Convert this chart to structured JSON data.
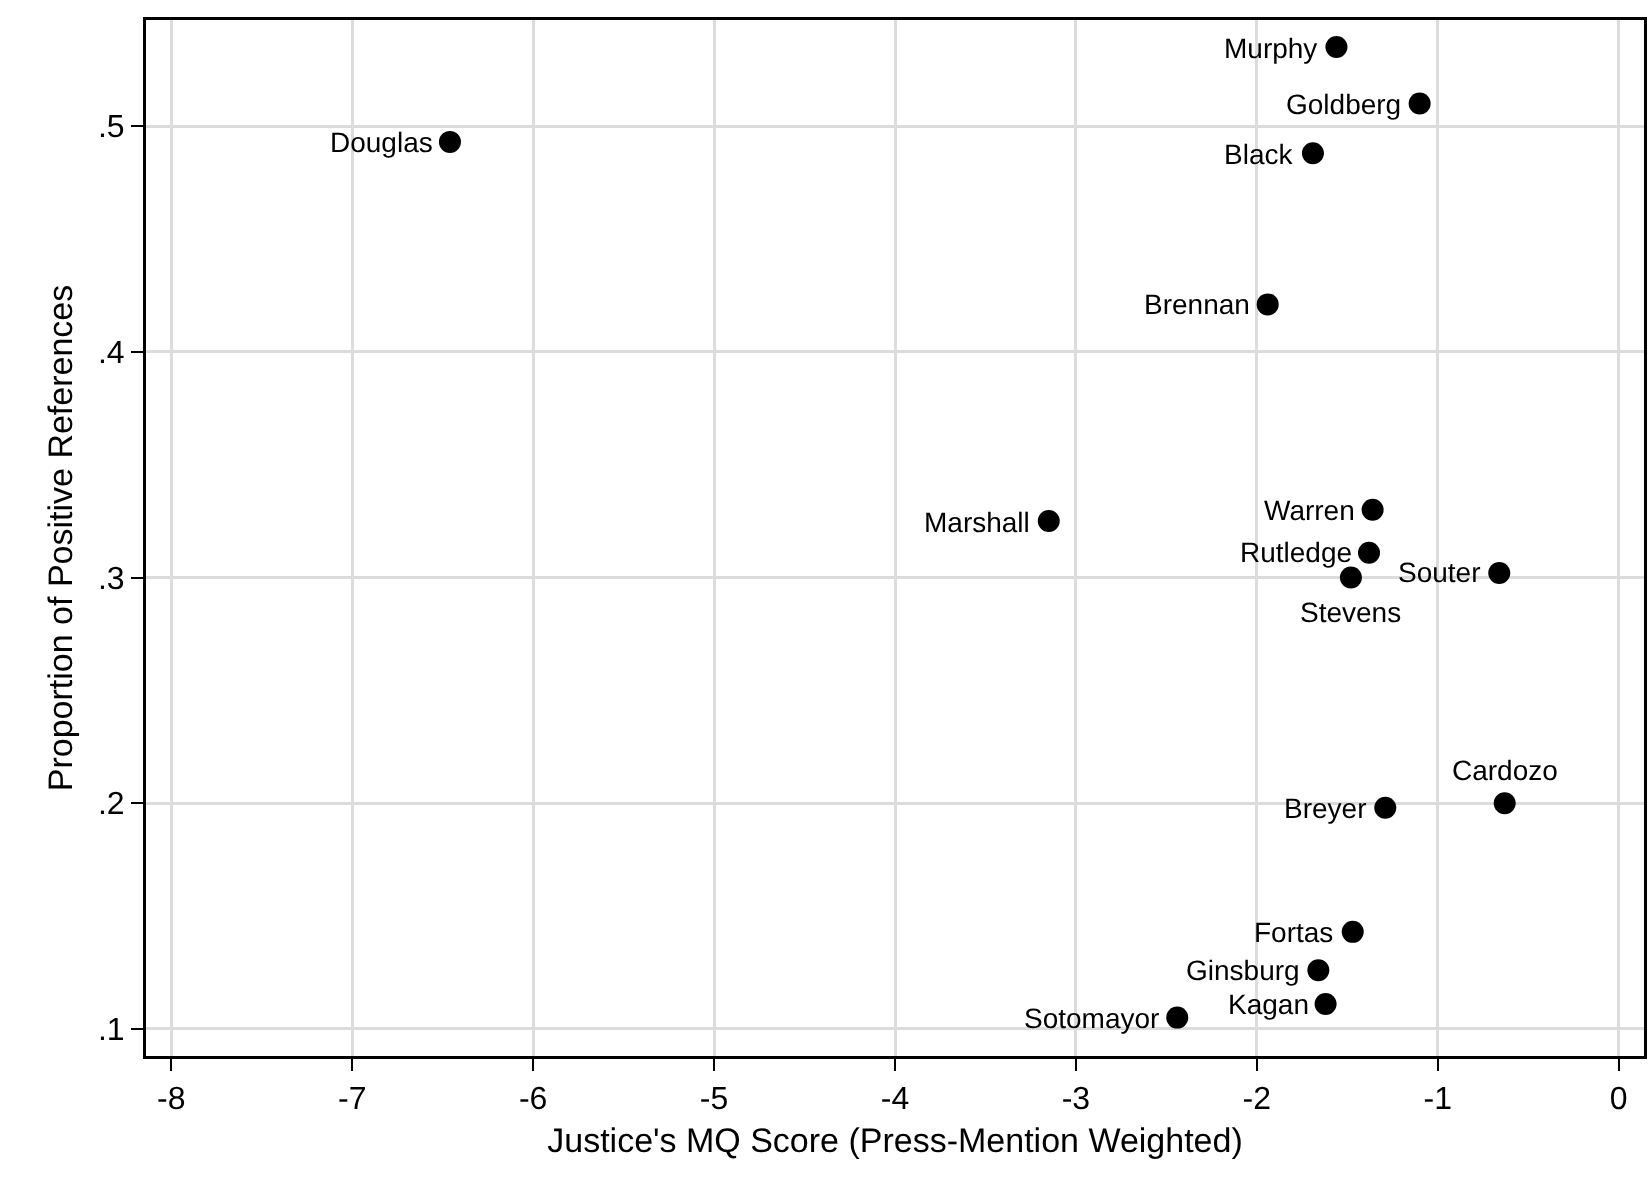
{
  "chart_data": {
    "type": "scatter",
    "xlabel": "Justice's MQ Score (Press-Mention Weighted)",
    "ylabel": "Proportion of Positive References",
    "x": [
      -1.56,
      -1.1,
      -6.46,
      -1.69,
      -1.94,
      -1.36,
      -3.15,
      -1.38,
      -0.66,
      -1.48,
      -1.29,
      -0.63,
      -1.47,
      -1.66,
      -1.62,
      -2.44
    ],
    "series": [
      {
        "color": "#000000",
        "values": [
          0.535,
          0.51,
          0.493,
          0.488,
          0.421,
          0.33,
          0.325,
          0.311,
          0.302,
          0.3,
          0.198,
          0.2,
          0.143,
          0.126,
          0.111,
          0.105
        ]
      }
    ],
    "annotations": [
      {
        "text": "Murphy",
        "x": -1.56,
        "y": 0.535
      },
      {
        "text": "Goldberg",
        "x": -1.1,
        "y": 0.51
      },
      {
        "text": "Douglas",
        "x": -6.46,
        "y": 0.493
      },
      {
        "text": "Black",
        "x": -1.69,
        "y": 0.488
      },
      {
        "text": "Brennan",
        "x": -1.94,
        "y": 0.421
      },
      {
        "text": "Warren",
        "x": -1.36,
        "y": 0.33
      },
      {
        "text": "Marshall",
        "x": -3.15,
        "y": 0.325
      },
      {
        "text": "Rutledge",
        "x": -1.38,
        "y": 0.311
      },
      {
        "text": "Souter",
        "x": -0.66,
        "y": 0.302
      },
      {
        "text": "Stevens",
        "x": -1.48,
        "y": 0.3
      },
      {
        "text": "Breyer",
        "x": -1.29,
        "y": 0.198
      },
      {
        "text": "Cardozo",
        "x": -0.63,
        "y": 0.2
      },
      {
        "text": "Fortas",
        "x": -1.47,
        "y": 0.143
      },
      {
        "text": "Ginsburg",
        "x": -1.66,
        "y": 0.126
      },
      {
        "text": "Kagan",
        "x": -1.62,
        "y": 0.111
      },
      {
        "text": "Sotomayor",
        "x": -2.44,
        "y": 0.105
      }
    ],
    "xlim": [
      -8.14,
      0.14
    ],
    "ylim": [
      0.088,
      0.547
    ],
    "xticks": [
      -8,
      -7,
      -6,
      -5,
      -4,
      -3,
      -2,
      -1,
      0
    ],
    "yticks": [
      {
        "value": 0.1,
        "label": ".1"
      },
      {
        "value": 0.2,
        "label": ".2"
      },
      {
        "value": 0.3,
        "label": ".3"
      },
      {
        "value": 0.4,
        "label": ".4"
      },
      {
        "value": 0.5,
        "label": ".5"
      }
    ],
    "grid": true,
    "marker": "circle"
  }
}
